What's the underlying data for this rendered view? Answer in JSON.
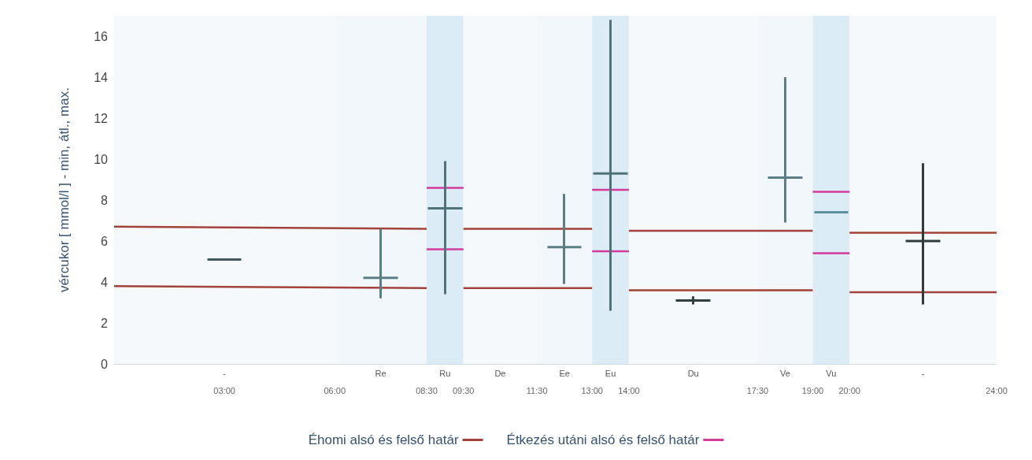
{
  "chart_data": {
    "type": "candlestick",
    "ylabel": "vércukor [ mmol/l ] - min, átl., max.",
    "xlim": [
      0,
      24
    ],
    "ylim": [
      0,
      17
    ],
    "yticks": [
      0,
      2,
      4,
      6,
      8,
      10,
      12,
      14,
      16
    ],
    "xticks": [
      {
        "value": 3,
        "label": "03:00"
      },
      {
        "value": 6,
        "label": "06:00"
      },
      {
        "value": 8.5,
        "label": "08:30"
      },
      {
        "value": 9.5,
        "label": "09:30"
      },
      {
        "value": 11.5,
        "label": "11:30"
      },
      {
        "value": 13,
        "label": "13:00"
      },
      {
        "value": 14,
        "label": "14:00"
      },
      {
        "value": 17.5,
        "label": "17:30"
      },
      {
        "value": 19,
        "label": "19:00"
      },
      {
        "value": 20,
        "label": "20:00"
      },
      {
        "value": 24,
        "label": "24:00"
      }
    ],
    "grid": false,
    "legend": "bottom",
    "series": [
      {
        "x": [
          3,
          7.25,
          9,
          12.25,
          13.5,
          15.75,
          18.25,
          19.5,
          22
        ],
        "ohlc": [
          [
            5.1,
            5.1,
            5.1,
            5.1
          ],
          [
            4.2,
            6.6,
            3.2,
            4.2
          ],
          [
            7.6,
            9.9,
            3.4,
            7.6
          ],
          [
            5.7,
            8.3,
            3.9,
            5.7
          ],
          [
            9.3,
            16.8,
            2.6,
            9.3
          ],
          [
            3.1,
            3.3,
            2.9,
            3.1
          ],
          [
            9.1,
            14.0,
            6.9,
            9.1
          ],
          [
            7.4,
            7.4,
            7.4,
            7.4
          ],
          [
            6.0,
            9.8,
            2.9,
            6.0
          ]
        ],
        "colors": [
          "#3f5a5e",
          "#5b7f85",
          "#4f7378",
          "#5b7f85",
          "#4f7378",
          "#2f3f3f",
          "#5b7f85",
          "#5b8f9a",
          "#2f3a3a"
        ]
      },
      {
        "type": "line",
        "name": "Éhomi alsó és felső határ",
        "color": "#a3423a",
        "x": [
          0,
          8.5,
          9,
          9.5,
          13,
          13.5,
          14,
          19,
          19.5,
          20,
          24
        ],
        "values": [
          6.7,
          6.6,
          null,
          6.6,
          6.6,
          null,
          6.5,
          6.5,
          null,
          6.4,
          6.4
        ]
      },
      {
        "type": "line",
        "color": "#a3423a",
        "x": [
          0,
          8.5,
          9,
          9.5,
          13,
          13.5,
          14,
          19,
          19.5,
          20,
          24
        ],
        "values": [
          3.8,
          3.7,
          null,
          3.7,
          3.7,
          null,
          3.6,
          3.6,
          null,
          3.5,
          3.5
        ]
      },
      {
        "type": "line",
        "name": "Étkezés utáni alsó és felső határ",
        "color": "#d43a9c",
        "x": [
          8.5,
          9.5,
          10,
          13,
          14,
          15,
          19,
          20
        ],
        "values": [
          8.6,
          8.6,
          null,
          8.5,
          8.5,
          null,
          8.4,
          8.4
        ]
      },
      {
        "type": "line",
        "color": "#d43a9c",
        "x": [
          8.5,
          9.5,
          10,
          13,
          14,
          15,
          19,
          20
        ],
        "values": [
          5.6,
          5.6,
          null,
          5.5,
          5.5,
          null,
          5.4,
          5.4
        ]
      }
    ],
    "bands": [
      {
        "axis": "x",
        "from": 0,
        "to": 6,
        "label": "-",
        "color": "#f6f9fc"
      },
      {
        "axis": "x",
        "from": 6,
        "to": 8.5,
        "label": "Re",
        "color": "#f2f7fb"
      },
      {
        "axis": "x",
        "from": 8.5,
        "to": 9.5,
        "label": "Ru",
        "color": "#dcecf6"
      },
      {
        "axis": "x",
        "from": 9.5,
        "to": 11.5,
        "label": "De",
        "color": "#f6f9fc"
      },
      {
        "axis": "x",
        "from": 11.5,
        "to": 13,
        "label": "Ee",
        "color": "#f2f7fb"
      },
      {
        "axis": "x",
        "from": 13,
        "to": 14,
        "label": "Eu",
        "color": "#dcecf6"
      },
      {
        "axis": "x",
        "from": 14,
        "to": 17.5,
        "label": "Du",
        "color": "#f6f9fc"
      },
      {
        "axis": "x",
        "from": 17.5,
        "to": 19,
        "label": "Ve",
        "color": "#f2f7fb"
      },
      {
        "axis": "x",
        "from": 19,
        "to": 20,
        "label": "Vu",
        "color": "#dcecf6"
      },
      {
        "axis": "x",
        "from": 20,
        "to": 24,
        "label": "-",
        "color": "#f6f9fc"
      }
    ]
  }
}
